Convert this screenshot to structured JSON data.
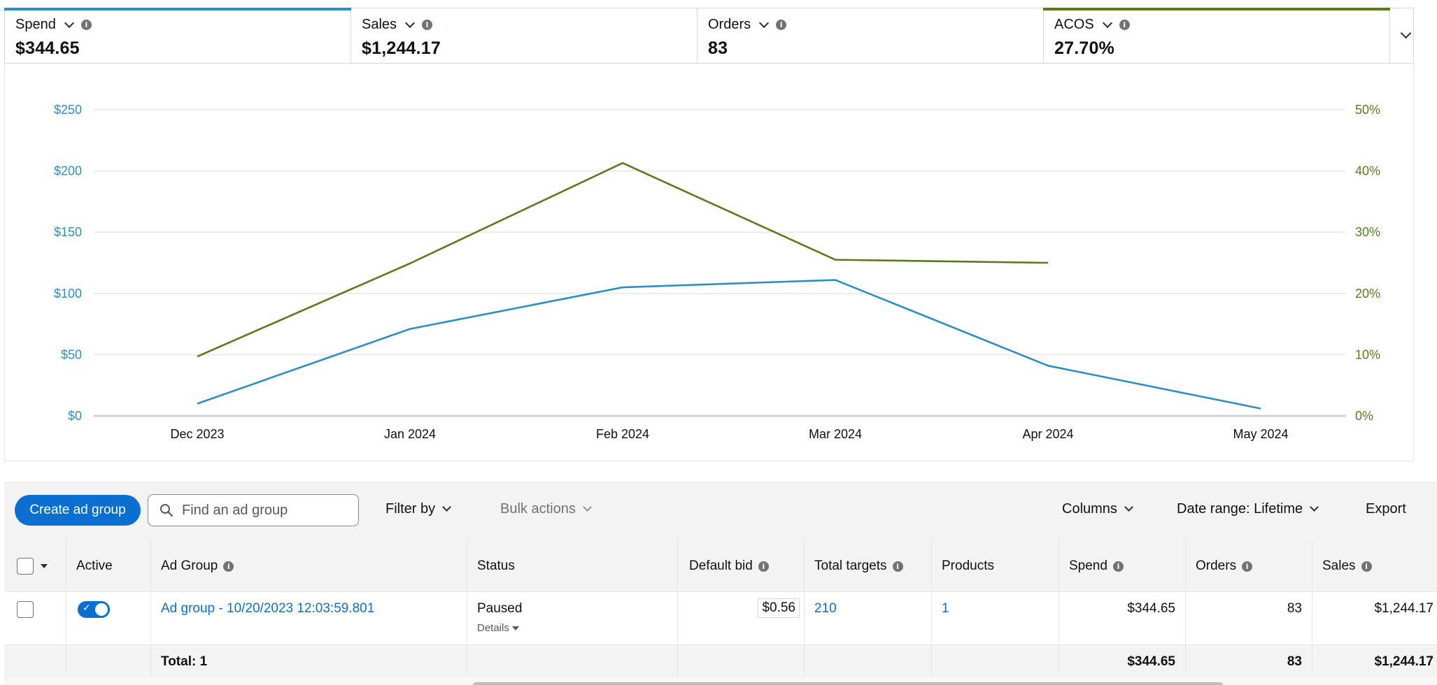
{
  "metrics": [
    {
      "label": "Spend",
      "value": "$344.65",
      "color": "#2e8ec0"
    },
    {
      "label": "Sales",
      "value": "$1,244.17",
      "color": ""
    },
    {
      "label": "Orders",
      "value": "83",
      "color": ""
    },
    {
      "label": "ACOS",
      "value": "27.70%",
      "color": "#5a7a1e"
    }
  ],
  "chart_data": {
    "type": "line",
    "x": [
      "Dec 2023",
      "Jan 2024",
      "Feb 2024",
      "Mar 2024",
      "Apr 2024",
      "May 2024"
    ],
    "left_axis": {
      "ticks": [
        "$0",
        "$50",
        "$100",
        "$150",
        "$200",
        "$250"
      ],
      "ylim": [
        0,
        250
      ],
      "color": "#2e8ec0"
    },
    "right_axis": {
      "ticks": [
        "0%",
        "10%",
        "20%",
        "30%",
        "40%",
        "50%"
      ],
      "ylim": [
        0,
        50
      ],
      "color": "#5a7a1e"
    },
    "series": [
      {
        "key": "spend",
        "axis": "left",
        "color": "#2e8ec0",
        "values": [
          10,
          71,
          105,
          111,
          41,
          6
        ]
      },
      {
        "key": "acos",
        "axis": "right",
        "color": "#5a7a1e",
        "values": [
          9.7,
          24.9,
          41.3,
          25.5,
          25.0,
          null
        ]
      }
    ],
    "grid": true
  },
  "toolbar": {
    "create_label": "Create ad group",
    "search_placeholder": "Find an ad group",
    "filter_label": "Filter by",
    "bulk_label": "Bulk actions",
    "columns_label": "Columns",
    "date_range_label": "Date range: Lifetime",
    "export_label": "Export"
  },
  "table": {
    "headers": {
      "active": "Active",
      "ad_group": "Ad Group",
      "status": "Status",
      "default_bid": "Default bid",
      "total_targets": "Total targets",
      "products": "Products",
      "spend": "Spend",
      "orders": "Orders",
      "sales": "Sales"
    },
    "rows": [
      {
        "ad_group": "Ad group - 10/20/2023 12:03:59.801",
        "status": "Paused",
        "details": "Details",
        "default_bid": "$0.56",
        "total_targets": "210",
        "products": "1",
        "spend": "$344.65",
        "orders": "83",
        "sales": "$1,244.17"
      }
    ],
    "total": {
      "label": "Total: 1",
      "spend": "$344.65",
      "orders": "83",
      "sales": "$1,244.17"
    }
  }
}
